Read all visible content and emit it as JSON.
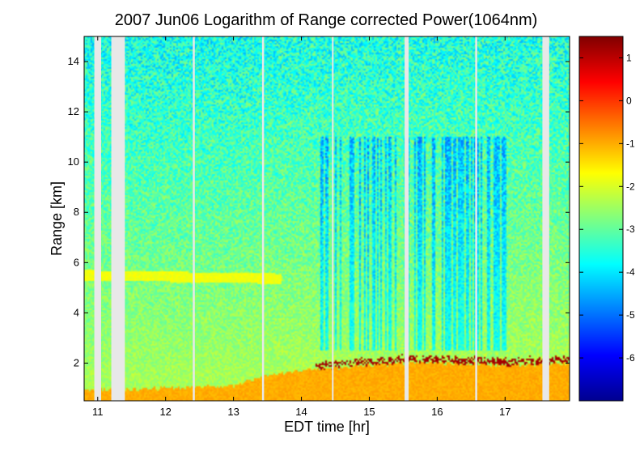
{
  "chart_data": {
    "type": "heatmap",
    "title": "2007 Jun06  Logarithm of Range corrected Power(1064nm)",
    "xlabel": "EDT time [hr]",
    "ylabel": "Range [km]",
    "xlim": [
      10.8,
      17.95
    ],
    "ylim": [
      0.5,
      15.0
    ],
    "x_ticks": [
      11,
      12,
      13,
      14,
      15,
      16,
      17
    ],
    "y_ticks": [
      2,
      4,
      6,
      8,
      10,
      12,
      14
    ],
    "colorbar": {
      "colormap": "jet",
      "range": [
        -7.0,
        1.5
      ],
      "ticks": [
        1,
        0,
        -1,
        -2,
        -3,
        -4,
        -5,
        -6
      ]
    },
    "data_gaps": [
      {
        "start": 10.95,
        "end": 11.05
      },
      {
        "start": 11.2,
        "end": 11.4
      },
      {
        "start": 12.4,
        "end": 12.43
      },
      {
        "start": 13.42,
        "end": 13.45
      },
      {
        "start": 14.45,
        "end": 14.47
      },
      {
        "start": 15.52,
        "end": 15.58
      },
      {
        "start": 16.56,
        "end": 16.59
      },
      {
        "start": 17.55,
        "end": 17.65
      }
    ],
    "features": {
      "surface_layer_top_km": [
        {
          "x": 10.8,
          "y": 0.9
        },
        {
          "x": 12.0,
          "y": 1.0
        },
        {
          "x": 13.0,
          "y": 1.1
        },
        {
          "x": 13.5,
          "y": 1.5
        },
        {
          "x": 14.0,
          "y": 1.7
        },
        {
          "x": 14.5,
          "y": 1.8
        },
        {
          "x": 15.0,
          "y": 1.9
        },
        {
          "x": 15.5,
          "y": 2.0
        },
        {
          "x": 16.0,
          "y": 2.0
        },
        {
          "x": 17.0,
          "y": 1.9
        },
        {
          "x": 17.95,
          "y": 2.0
        }
      ],
      "elevated_aerosol_layer": {
        "x_start": 10.8,
        "x_end": 13.7,
        "height_km": 5.5,
        "thickness_km": 0.4
      },
      "cloud_base": {
        "x_start": 14.2,
        "x_end": 17.95,
        "height_km": 2.0
      },
      "precipitation_streaks": {
        "x_start": 14.2,
        "x_end": 17.2,
        "from_km": 2.5,
        "to_km": 11.0
      }
    }
  }
}
